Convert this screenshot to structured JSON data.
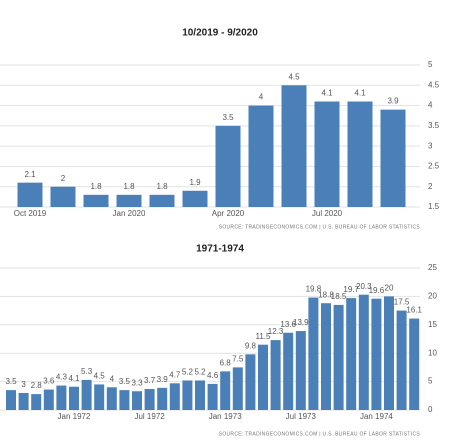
{
  "chart_data": [
    {
      "type": "bar",
      "title": "10/2019 - 9/2020",
      "categories": [
        "Oct 2019",
        null,
        null,
        "Jan 2020",
        null,
        null,
        "Apr 2020",
        null,
        null,
        "Jul 2020",
        null,
        null
      ],
      "values": [
        2.1,
        2,
        1.8,
        1.8,
        1.8,
        1.9,
        3.5,
        4,
        4.5,
        4.1,
        4.1,
        3.9
      ],
      "color": "#4a80b7",
      "ylim": [
        1.5,
        5
      ],
      "yticks": [
        1.5,
        2,
        2.5,
        3,
        3.5,
        4,
        4.5,
        5
      ],
      "grid": true,
      "source": "SOURCE: TRADINGECONOMICS.COM | U.S. BUREAU OF LABOR STATISTICS"
    },
    {
      "type": "bar",
      "title": "1971-1974",
      "categories": [
        null,
        null,
        null,
        null,
        null,
        "Jan 1972",
        null,
        null,
        null,
        null,
        null,
        "Jul 1972",
        null,
        null,
        null,
        null,
        null,
        "Jan 1973",
        null,
        null,
        null,
        null,
        null,
        "Jul 1973",
        null,
        null,
        null,
        null,
        null,
        "Jan 1974",
        null,
        null,
        null
      ],
      "values": [
        3.5,
        3,
        2.8,
        3.6,
        4.3,
        4.1,
        5.3,
        4.5,
        4,
        3.5,
        3.3,
        3.7,
        3.9,
        4.7,
        5.2,
        5.2,
        4.6,
        6.8,
        7.5,
        9.8,
        11.5,
        12.3,
        13.6,
        13.9,
        19.8,
        18.8,
        18.5,
        19.7,
        20.3,
        19.6,
        20,
        17.5,
        16.1
      ],
      "color": "#4a80b7",
      "ylim": [
        0,
        25
      ],
      "yticks": [
        0,
        5,
        10,
        15,
        20,
        25
      ],
      "grid": true,
      "source": "SOURCE: TRADINGECONOMICS.COM | U.S. BUREAU OF LABOR STATISTICS"
    }
  ]
}
